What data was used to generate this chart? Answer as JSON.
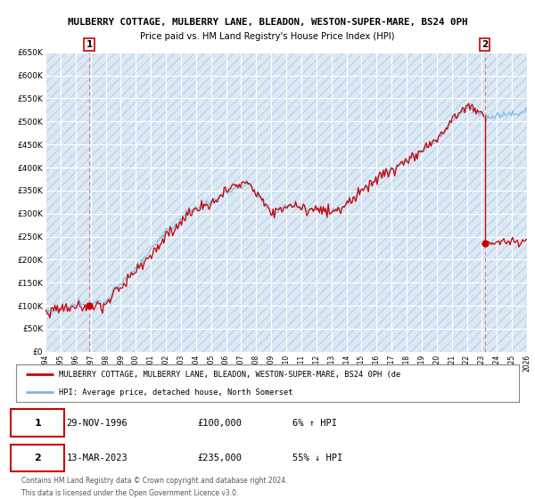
{
  "title1": "MULBERRY COTTAGE, MULBERRY LANE, BLEADON, WESTON-SUPER-MARE, BS24 0PH",
  "title2": "Price paid vs. HM Land Registry's House Price Index (HPI)",
  "bg_color": "#dce9f5",
  "hatch_color": "#c8d8ea",
  "grid_color": "#ffffff",
  "hpi_color": "#7ab8d9",
  "price_color": "#cc0000",
  "vline_color": "#e08080",
  "ylim": [
    0,
    650000
  ],
  "xlim_start": 1994,
  "xlim_end": 2026,
  "transaction1": {
    "date_num": 1996.91,
    "price": 100000,
    "label": "1",
    "date_str": "29-NOV-1996",
    "pct": "6%",
    "dir": "↑"
  },
  "transaction2": {
    "date_num": 2023.19,
    "price": 235000,
    "label": "2",
    "date_str": "13-MAR-2023",
    "pct": "55%",
    "dir": "↓"
  },
  "legend_line1": "MULBERRY COTTAGE, MULBERRY LANE, BLEADON, WESTON-SUPER-MARE, BS24 0PH (de",
  "legend_line2": "HPI: Average price, detached house, North Somerset",
  "footer1": "Contains HM Land Registry data © Crown copyright and database right 2024.",
  "footer2": "This data is licensed under the Open Government Licence v3.0.",
  "row1_num": "1",
  "row1_date": "29-NOV-1996",
  "row1_price": "£100,000",
  "row1_pct": "6% ↑ HPI",
  "row2_num": "2",
  "row2_date": "13-MAR-2023",
  "row2_price": "£235,000",
  "row2_pct": "55% ↓ HPI"
}
